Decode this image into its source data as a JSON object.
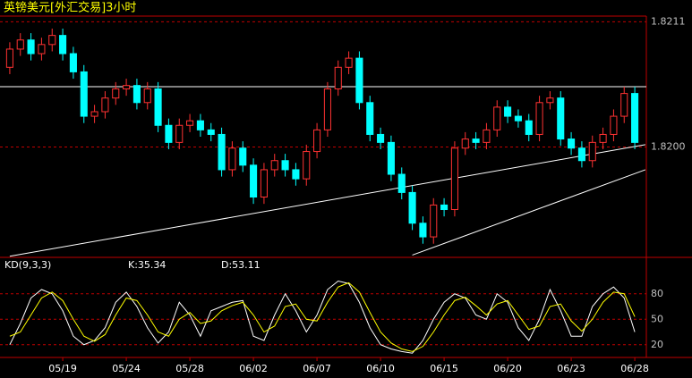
{
  "chart_data": [
    {
      "type": "candlestick",
      "title": "英镑美元[外汇交易]3小时",
      "categories": [
        null,
        null,
        null,
        null,
        null,
        "05/19",
        null,
        null,
        null,
        null,
        null,
        "05/24",
        null,
        null,
        null,
        null,
        null,
        "05/28",
        null,
        null,
        null,
        null,
        null,
        "06/02",
        null,
        null,
        null,
        null,
        null,
        "06/07",
        null,
        null,
        null,
        null,
        null,
        "06/10",
        null,
        null,
        null,
        null,
        null,
        "06/15",
        null,
        null,
        null,
        null,
        null,
        "06/20",
        null,
        null,
        null,
        null,
        null,
        "06/23",
        null,
        null,
        null,
        null,
        null,
        "06/28"
      ],
      "open": [
        1.8207,
        1.82086,
        1.82094,
        1.82082,
        1.8209,
        1.82098,
        1.82082,
        1.82066,
        1.82027,
        1.82031,
        1.82043,
        1.82051,
        1.82054,
        1.82039,
        1.82051,
        1.82019,
        1.82004,
        1.82019,
        1.82023,
        1.82015,
        1.82011,
        1.8198,
        1.81999,
        1.81984,
        1.81956,
        1.8198,
        1.81988,
        1.8198,
        1.81972,
        1.81996,
        1.82015,
        1.82051,
        1.8207,
        1.82078,
        1.82039,
        1.82011,
        1.82004,
        1.81976,
        1.8196,
        1.81933,
        1.81921,
        1.81949,
        1.81945,
        1.81999,
        1.82007,
        1.82004,
        1.82015,
        1.82035,
        1.82027,
        1.82023,
        1.82011,
        1.82039,
        1.82043,
        1.82007,
        1.81999,
        1.81988,
        1.82004,
        1.82011,
        1.82027,
        1.82047
      ],
      "high": [
        1.82092,
        1.821,
        1.821,
        1.82096,
        1.82104,
        1.82104,
        1.82088,
        1.82072,
        1.82037,
        1.82049,
        1.82057,
        1.8206,
        1.8206,
        1.82057,
        1.82057,
        1.82025,
        1.82025,
        1.82029,
        1.82029,
        1.82021,
        1.82017,
        1.82005,
        1.82005,
        1.8199,
        1.81986,
        1.81994,
        1.81994,
        1.81986,
        1.82002,
        1.82021,
        1.82057,
        1.82076,
        1.82084,
        1.82084,
        1.82045,
        1.82017,
        1.8201,
        1.81982,
        1.81966,
        1.81939,
        1.81955,
        1.81955,
        1.82005,
        1.82013,
        1.82013,
        1.82021,
        1.82041,
        1.82041,
        1.82033,
        1.82029,
        1.82045,
        1.82049,
        1.82049,
        1.82013,
        1.82005,
        1.8201,
        1.82017,
        1.82033,
        1.82053,
        1.82053
      ],
      "low": [
        1.82064,
        1.8208,
        1.82076,
        1.82076,
        1.82084,
        1.82076,
        1.8206,
        1.82021,
        1.82021,
        1.82025,
        1.82037,
        1.82045,
        1.82033,
        1.82033,
        1.82013,
        1.81998,
        1.81998,
        1.82013,
        1.82009,
        1.82005,
        1.81974,
        1.81974,
        1.81978,
        1.8195,
        1.8195,
        1.81974,
        1.81974,
        1.81966,
        1.81966,
        1.8199,
        1.82009,
        1.82045,
        1.82064,
        1.82033,
        1.82005,
        1.81998,
        1.8197,
        1.81954,
        1.81927,
        1.81915,
        1.81915,
        1.81939,
        1.81939,
        1.81993,
        1.81998,
        1.81998,
        1.82009,
        1.82021,
        1.82017,
        1.82005,
        1.82005,
        1.82033,
        1.82001,
        1.81993,
        1.81982,
        1.81982,
        1.81998,
        1.82005,
        1.82021,
        1.81998
      ],
      "close": [
        1.82086,
        1.82094,
        1.82082,
        1.8209,
        1.82098,
        1.82082,
        1.82066,
        1.82027,
        1.82031,
        1.82043,
        1.82051,
        1.82054,
        1.82039,
        1.82051,
        1.82019,
        1.82004,
        1.82019,
        1.82023,
        1.82015,
        1.82011,
        1.8198,
        1.81999,
        1.81984,
        1.81956,
        1.8198,
        1.81988,
        1.8198,
        1.81972,
        1.81996,
        1.82015,
        1.82051,
        1.8207,
        1.82078,
        1.82039,
        1.82011,
        1.82004,
        1.81976,
        1.8196,
        1.81933,
        1.81921,
        1.81949,
        1.81945,
        1.81999,
        1.82007,
        1.82004,
        1.82015,
        1.82035,
        1.82027,
        1.82023,
        1.82011,
        1.82039,
        1.82043,
        1.82007,
        1.81999,
        1.81988,
        1.82004,
        1.82011,
        1.82027,
        1.82047,
        1.82004
      ],
      "up_color": "#ff3232",
      "down_color": "#00ffff",
      "ylim": [
        1.81903,
        1.82115
      ],
      "yticks": [
        1.8211,
        {
          "value": 1.82,
          "label": "1.8200"
        }
      ],
      "hlines": [
        1.82053
      ],
      "lines": [
        {
          "x": [
            0,
            60
          ],
          "y": [
            1.81904,
            1.82002
          ]
        },
        {
          "x": [
            38,
            60
          ],
          "y": [
            1.81905,
            1.8198
          ]
        }
      ],
      "line_color": "#ffffff",
      "grid_color": "#c00000"
    },
    {
      "type": "line",
      "title": "KD(9,3,3)",
      "annotations": [
        "K:35.34",
        "D:53.11"
      ],
      "series": [
        {
          "name": "K",
          "color": "#ffffff",
          "values": [
            20,
            45,
            75,
            85,
            80,
            60,
            30,
            20,
            25,
            40,
            70,
            82,
            65,
            40,
            22,
            35,
            70,
            55,
            30,
            60,
            65,
            70,
            72,
            30,
            25,
            55,
            80,
            60,
            35,
            55,
            85,
            95,
            92,
            70,
            40,
            20,
            15,
            12,
            10,
            25,
            50,
            70,
            80,
            75,
            55,
            50,
            80,
            70,
            40,
            25,
            50,
            85,
            60,
            30,
            30,
            65,
            80,
            88,
            75,
            35
          ]
        },
        {
          "name": "D",
          "color": "#ffff00",
          "values": [
            30,
            35,
            55,
            75,
            82,
            72,
            50,
            30,
            24,
            32,
            55,
            75,
            72,
            55,
            35,
            30,
            50,
            58,
            45,
            48,
            60,
            66,
            70,
            55,
            35,
            42,
            65,
            68,
            50,
            48,
            70,
            88,
            93,
            82,
            58,
            35,
            22,
            15,
            12,
            18,
            35,
            55,
            72,
            76,
            66,
            55,
            68,
            72,
            55,
            38,
            42,
            65,
            68,
            48,
            36,
            50,
            70,
            82,
            80,
            53
          ]
        }
      ],
      "ylim": [
        5,
        115
      ],
      "yticks": [
        20,
        50,
        80
      ],
      "grid_color": "#c00000"
    }
  ]
}
